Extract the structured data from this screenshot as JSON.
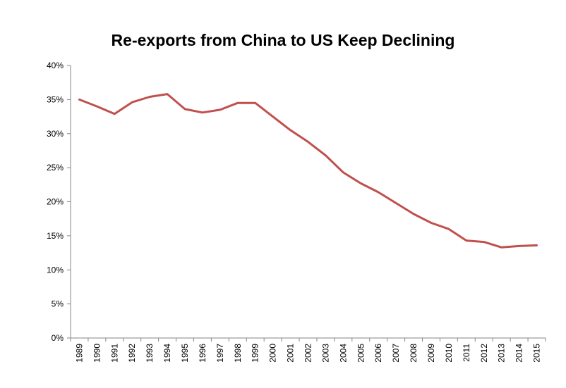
{
  "chart_data": {
    "type": "line",
    "title": "Re-exports from China to US Keep Declining",
    "xlabel": "",
    "ylabel": "",
    "categories": [
      "1989",
      "1990",
      "1991",
      "1992",
      "1993",
      "1994",
      "1995",
      "1996",
      "1997",
      "1998",
      "1999",
      "2000",
      "2001",
      "2002",
      "2003",
      "2004",
      "2005",
      "2006",
      "2007",
      "2008",
      "2009",
      "2010",
      "2011",
      "2012",
      "2013",
      "2014",
      "2015"
    ],
    "series": [
      {
        "values": [
          35.0,
          34.0,
          32.9,
          34.6,
          35.4,
          35.8,
          33.6,
          33.1,
          33.5,
          34.5,
          34.5,
          32.5,
          30.5,
          28.8,
          26.8,
          24.3,
          22.7,
          21.4,
          19.8,
          18.2,
          16.9,
          16.0,
          14.3,
          14.1,
          13.3,
          13.5,
          13.6
        ]
      }
    ],
    "ylim": [
      0,
      40
    ],
    "yticks": [
      0,
      5,
      10,
      15,
      20,
      25,
      30,
      35,
      40
    ],
    "ytick_labels": [
      "0%",
      "5%",
      "10%",
      "15%",
      "20%",
      "25%",
      "30%",
      "35%",
      "40%"
    ],
    "grid": false,
    "legend": "none",
    "line_color": "#c0504d",
    "axis_color": "#868686"
  }
}
